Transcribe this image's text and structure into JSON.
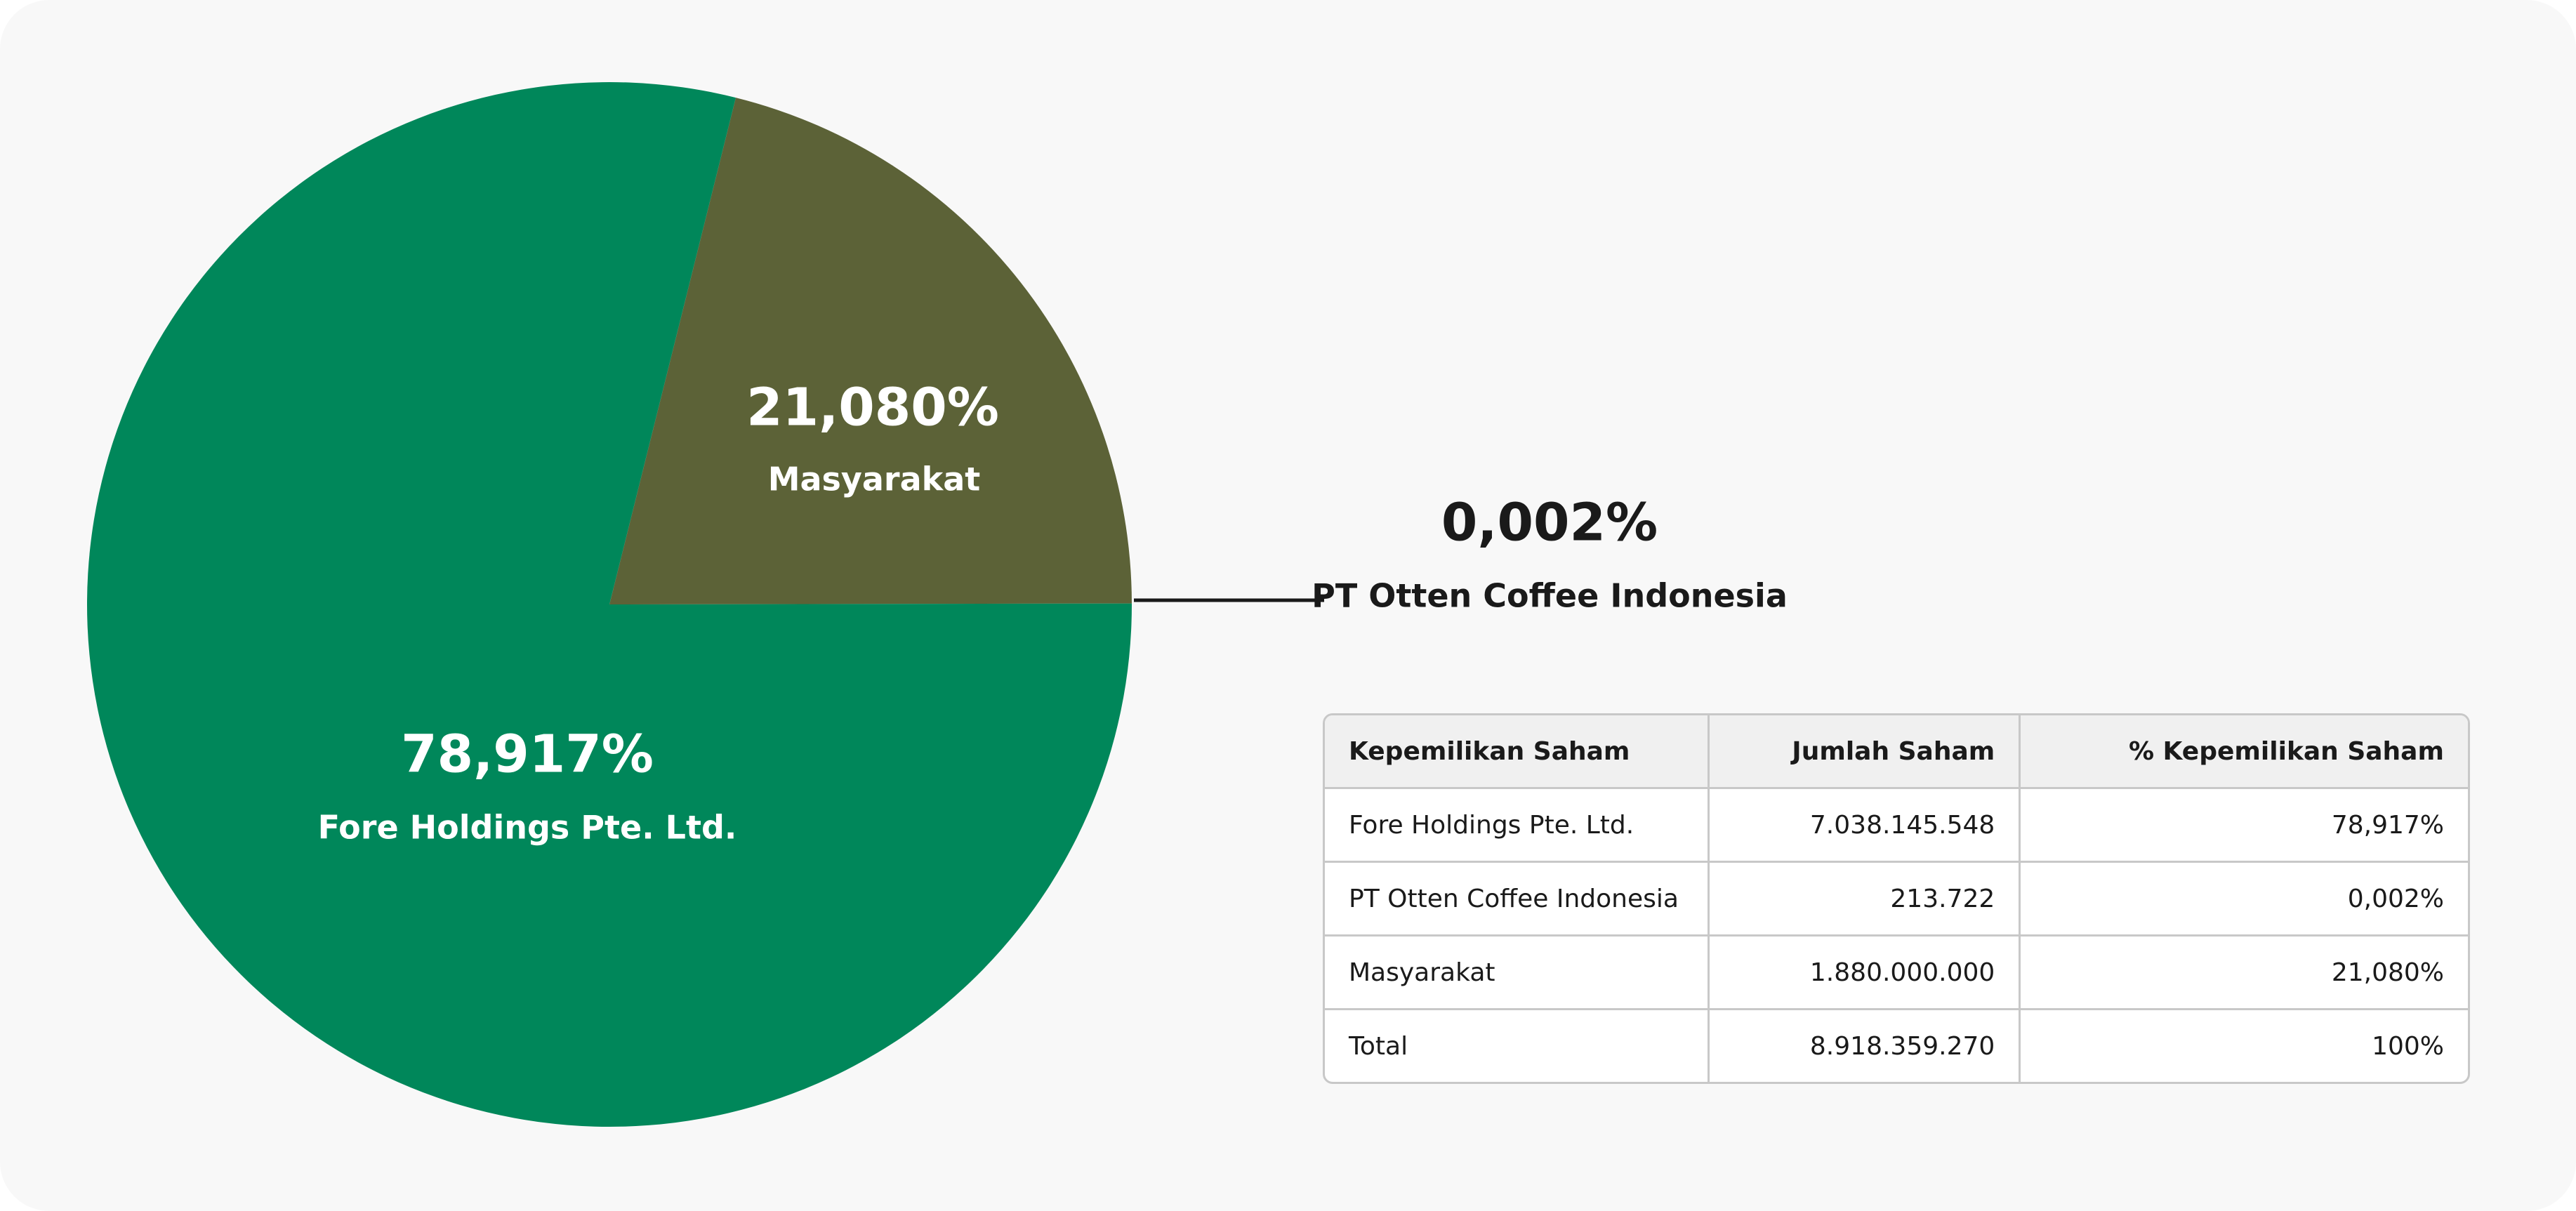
{
  "chart_data": {
    "type": "pie",
    "categories": [
      "Masyarakat",
      "PT Otten Coffee Indonesia",
      "Fore Holdings Pte. Ltd."
    ],
    "values": [
      21.08,
      0.002,
      78.917
    ],
    "value_labels": [
      "21,080%",
      "0,002%",
      "78,917%"
    ],
    "colors": [
      "#5c6237",
      "#b5a95a",
      "#00875a"
    ]
  },
  "table": {
    "header": [
      "Kepemilikan Saham",
      "Jumlah Saham",
      "% Kepemilikan Saham"
    ],
    "rows": [
      [
        "Fore Holdings Pte. Ltd.",
        "7.038.145.548",
        "78,917%"
      ],
      [
        "PT Otten Coffee Indonesia",
        "213.722",
        "0,002%"
      ],
      [
        "Masyarakat",
        "1.880.000.000",
        "21,080%"
      ],
      [
        "Total",
        "8.918.359.270",
        "100%"
      ]
    ]
  }
}
